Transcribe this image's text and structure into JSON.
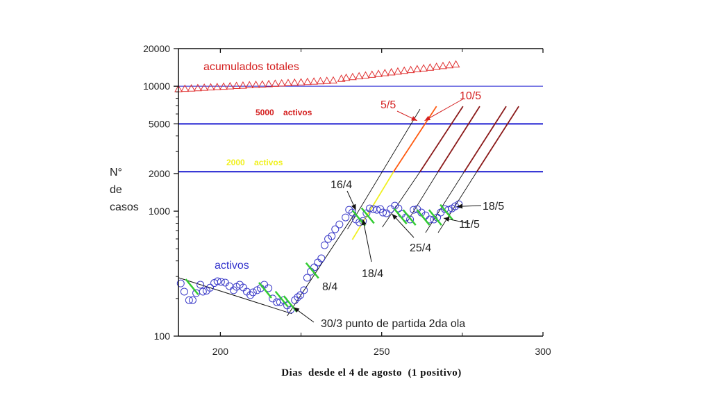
{
  "chart_data": {
    "type": "scatter",
    "title": "",
    "xlabel": "Dias  desde el 4 de agosto  (1 positivo)",
    "ylabel": [
      "N°",
      "de",
      "casos"
    ],
    "xscale": "linear",
    "yscale": "log",
    "xlim": [
      187,
      300
    ],
    "ylim": [
      100,
      20000
    ],
    "x_ticks": [
      200,
      250,
      300
    ],
    "x_minor_ticks": [
      225,
      275
    ],
    "y_ticks": [
      100,
      1000,
      2000,
      5000,
      10000,
      20000
    ],
    "y_tick_labels": [
      "100",
      "1000",
      "2000",
      "5000",
      "10000",
      "20000"
    ],
    "grid": false,
    "colors": {
      "activos": "#3a3ac8",
      "acumulados": "#e03030",
      "ref_line": "#1a1ad0",
      "fit_line": "#111111",
      "green_mark": "#33cc33",
      "yellow": "#f0f020",
      "dark_red": "#8b1a1a",
      "orange": "#ff5a10"
    },
    "series": [
      {
        "name": "acumulados totales",
        "marker": "triangle",
        "x": [
          187,
          189,
          191,
          193,
          195,
          197,
          199,
          201,
          203,
          205,
          207,
          209,
          211,
          213,
          215,
          217,
          219,
          221,
          223,
          225,
          227,
          229,
          231,
          233,
          235,
          237.5,
          239,
          241,
          243,
          245,
          247,
          249,
          251,
          253,
          255,
          257,
          259,
          261,
          263,
          265,
          267,
          269,
          271,
          273
        ],
        "y": [
          9500,
          9560,
          9620,
          9680,
          9750,
          9810,
          9880,
          9940,
          10010,
          10080,
          10140,
          10210,
          10280,
          10350,
          10420,
          10490,
          10560,
          10630,
          10700,
          10770,
          10850,
          10920,
          10990,
          11060,
          11130,
          11500,
          11700,
          11870,
          12040,
          12220,
          12400,
          12580,
          12760,
          12950,
          13140,
          13330,
          13520,
          13720,
          13920,
          14120,
          14330,
          14540,
          14750,
          14970
        ]
      },
      {
        "name": "activos",
        "marker": "circle",
        "x": [
          187.7,
          188.8,
          190.3,
          191.4,
          192.5,
          193.8,
          194.6,
          195.7,
          196.8,
          198.1,
          199.1,
          200.2,
          201.5,
          202.8,
          204.1,
          205,
          206,
          207.1,
          208.2,
          209.3,
          210.1,
          211.4,
          212.5,
          213.6,
          214.9,
          216.2,
          217.5,
          218.5,
          219.6,
          220.7,
          221.8,
          223.1,
          224,
          224.8,
          225.9,
          226.9,
          228,
          229.1,
          230.2,
          231.3,
          232.3,
          233.4,
          234.5,
          235.6,
          236.9,
          238.8,
          239.9,
          240.9,
          242,
          243.1,
          244.2,
          245.3,
          246.3,
          247.4,
          248.5,
          249.6,
          250.4,
          251.5,
          252.8,
          254.1,
          255.2,
          256.2,
          257.5,
          258.8,
          259.9,
          261,
          262.3,
          263.6,
          264.9,
          266.2,
          267.2,
          268.3,
          269.6,
          270.7,
          271.8,
          272.8,
          273.9
        ],
        "y": [
          264,
          227,
          194,
          194,
          221,
          258,
          227,
          231,
          244,
          266,
          275,
          272,
          268,
          251,
          233,
          248,
          258,
          245,
          227,
          213,
          224,
          233,
          242,
          258,
          242,
          200,
          187,
          187,
          194,
          176,
          163,
          194,
          205,
          213,
          233,
          293,
          328,
          355,
          388,
          419,
          534,
          599,
          631,
          717,
          784,
          891,
          1026,
          975,
          858,
          815,
          836,
          962,
          1052,
          1039,
          1026,
          1039,
          975,
          962,
          1039,
          1107,
          1052,
          950,
          891,
          858,
          1026,
          1039,
          975,
          926,
          858,
          858,
          891,
          975,
          1039,
          1026,
          1052,
          1094,
          1136
        ]
      }
    ],
    "reference_lines": [
      {
        "value": 10000,
        "style": "thin"
      },
      {
        "value": 5000,
        "label": "5000    activos",
        "label_color": "red"
      },
      {
        "value": 2070,
        "label": "2000    activos",
        "label_color": "yellow"
      }
    ],
    "fit_lines": [
      {
        "from": [
          187.1,
          293
        ],
        "to": [
          222.2,
          151
        ],
        "color": "fit_line"
      },
      {
        "from": [
          220.7,
          145
        ],
        "to": [
          242,
          990
        ],
        "color": "fit_line"
      }
    ],
    "projection_lines": [
      {
        "from": [
          239.4,
          717
        ],
        "to": [
          261.9,
          6560
        ],
        "color": "fit_line"
      },
      {
        "from": [
          240.9,
          592
        ],
        "to": [
          253.7,
          2070
        ],
        "color": "yellow"
      },
      {
        "from": [
          253.7,
          2070
        ],
        "to": [
          267.0,
          6900
        ],
        "color": "orange"
      },
      {
        "from": [
          250.2,
          745
        ],
        "to": [
          261.9,
          2070
        ],
        "color": "fit_line"
      },
      {
        "from": [
          261.9,
          2070
        ],
        "to": [
          275.2,
          6900
        ],
        "color": "dark_red"
      },
      {
        "from": [
          257.8,
          815
        ],
        "to": [
          267.5,
          2070
        ],
        "color": "fit_line"
      },
      {
        "from": [
          267.5,
          2070
        ],
        "to": [
          280.4,
          6900
        ],
        "color": "dark_red"
      },
      {
        "from": [
          263.6,
          673
        ],
        "to": [
          275.6,
          2070
        ],
        "color": "fit_line"
      },
      {
        "from": [
          275.6,
          2070
        ],
        "to": [
          288.6,
          6900
        ],
        "color": "dark_red"
      },
      {
        "from": [
          267.5,
          673
        ],
        "to": [
          279.5,
          2070
        ],
        "color": "fit_line"
      },
      {
        "from": [
          279.5,
          2070
        ],
        "to": [
          292.5,
          6900
        ],
        "color": "dark_red"
      }
    ],
    "green_marks": [
      {
        "x": 191.2,
        "y": 248
      },
      {
        "x": 213.9,
        "y": 233
      },
      {
        "x": 219.0,
        "y": 198
      },
      {
        "x": 221.6,
        "y": 182
      },
      {
        "x": 228.5,
        "y": 335
      },
      {
        "x": 242.9,
        "y": 880
      },
      {
        "x": 245.7,
        "y": 920
      },
      {
        "x": 255.8,
        "y": 910
      },
      {
        "x": 258.6,
        "y": 890
      },
      {
        "x": 262.9,
        "y": 890
      },
      {
        "x": 266.6,
        "y": 890
      },
      {
        "x": 270.1,
        "y": 980
      }
    ],
    "annotations": [
      {
        "text": "acumulados totales",
        "style": "legend-red"
      },
      {
        "text": "activos",
        "style": "legend-blue"
      },
      {
        "text": "5/5",
        "style": "red",
        "arrow_to": [
          261.0,
          5300
        ]
      },
      {
        "text": "10/5",
        "style": "red",
        "arrow_to": [
          263.3,
          5300
        ]
      },
      {
        "text": "16/4",
        "style": "black",
        "arrow_to": [
          242.0,
          1020
        ]
      },
      {
        "text": "18/4",
        "style": "black",
        "arrow_to": [
          244.2,
          860
        ]
      },
      {
        "text": "25/4",
        "style": "black",
        "arrow_to": [
          253.2,
          950
        ]
      },
      {
        "text": "11/5",
        "style": "black",
        "arrow_to": [
          269.2,
          880
        ]
      },
      {
        "text": "18/5",
        "style": "black",
        "arrow_to": [
          273.3,
          1090
        ]
      },
      {
        "text": "8/4",
        "style": "black"
      },
      {
        "text": "30/3 punto de partida 2da ola",
        "style": "black",
        "arrow_to": [
          222.7,
          170
        ]
      }
    ]
  }
}
